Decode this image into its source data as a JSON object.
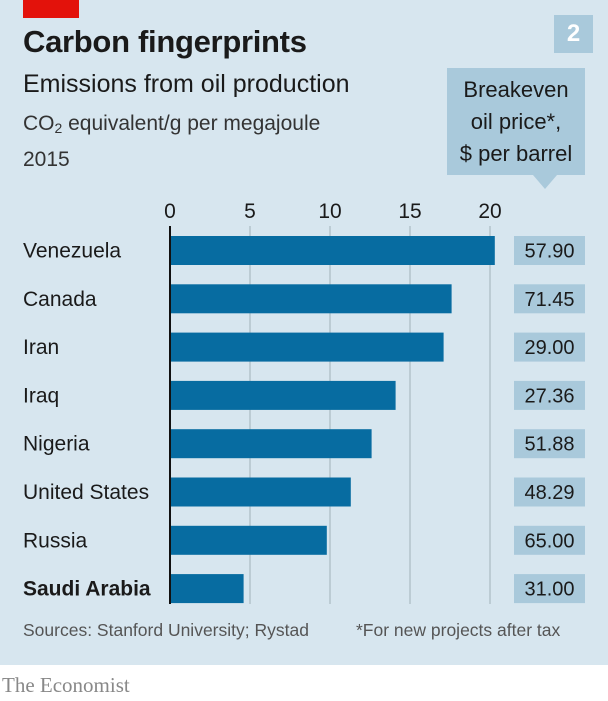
{
  "header": {
    "title": "Carbon fingerprints",
    "subtitle": "Emissions from oil production",
    "units_prefix": "CO",
    "units_sub": "2",
    "units_suffix": " equivalent/g per megajoule",
    "year": "2015",
    "chart_number": "2"
  },
  "callout": {
    "line1": "Breakeven",
    "line2": "oil price*,",
    "line3": "$ per barrel"
  },
  "footer": {
    "sources": "Sources: Stanford University; Rystad",
    "note": "*For new projects after tax",
    "brand": "The Economist"
  },
  "colors": {
    "background": "#d7e6ef",
    "bar": "#076ca1",
    "price_box": "#a9c9db",
    "accent_red": "#e3120b",
    "gridline": "#b3c3cc"
  },
  "chart_data": {
    "type": "bar",
    "orientation": "horizontal",
    "title": "Carbon fingerprints",
    "subtitle": "Emissions from oil production",
    "xlabel": "CO2 equivalent/g per megajoule, 2015",
    "ylabel": "",
    "xlim": [
      0,
      20
    ],
    "xticks": [
      0,
      5,
      10,
      15,
      20
    ],
    "grid": true,
    "categories": [
      "Venezuela",
      "Canada",
      "Iran",
      "Iraq",
      "Nigeria",
      "United States",
      "Russia",
      "Saudi Arabia"
    ],
    "highlighted": [
      "Saudi Arabia"
    ],
    "series": [
      {
        "name": "Emissions from oil production (CO2 equivalent/g per megajoule)",
        "values": [
          20.3,
          17.6,
          17.1,
          14.1,
          12.6,
          11.3,
          9.8,
          4.6
        ]
      },
      {
        "name": "Breakeven oil price*, $ per barrel",
        "values": [
          57.9,
          71.45,
          29.0,
          27.36,
          51.88,
          48.29,
          65.0,
          31.0
        ],
        "labels": [
          "57.90",
          "71.45",
          "29.00",
          "27.36",
          "51.88",
          "48.29",
          "65.00",
          "31.00"
        ]
      }
    ]
  }
}
